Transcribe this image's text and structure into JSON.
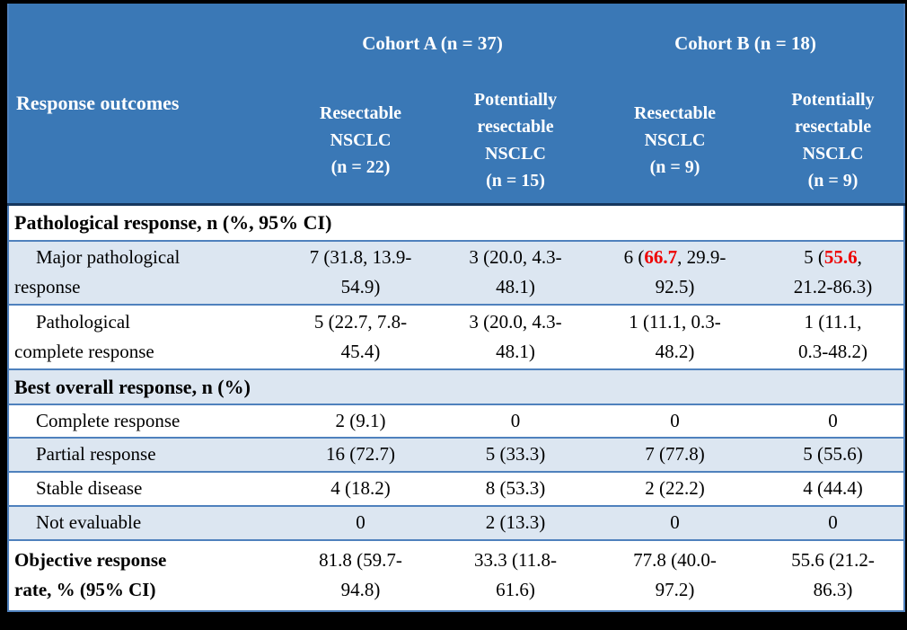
{
  "colors": {
    "frame": "#000000",
    "header_bg": "#3a78b6",
    "header_text": "#ffffff",
    "header_divider": "#16375e",
    "row_border": "#4f81bd",
    "band_bg": "#dce6f1",
    "body_text": "#000000",
    "highlight_red": "#ee0000"
  },
  "header": {
    "row_label": "Response outcomes",
    "groups": [
      {
        "label": "Cohort A (n = 37)"
      },
      {
        "label": "Cohort B (n = 18)"
      }
    ],
    "columns": [
      "Resectable\nNSCLC\n(n = 22)",
      "Potentially\nresectable\nNSCLC\n(n = 15)",
      "Resectable\nNSCLC\n(n = 9)",
      "Potentially\nresectable\nNSCLC\n(n = 9)"
    ]
  },
  "rows": [
    {
      "type": "section",
      "label": "Pathological response, n (%, 95% CI)"
    },
    {
      "type": "data",
      "label": "Major pathological\nresponse",
      "cells": [
        [
          {
            "t": "7 (31.8, 13.9-\n54.9)"
          }
        ],
        [
          {
            "t": "3 (20.0, 4.3-\n48.1)"
          }
        ],
        [
          {
            "t": "6 ("
          },
          {
            "t": "66.7",
            "highlight": true
          },
          {
            "t": ", 29.9-\n92.5)"
          }
        ],
        [
          {
            "t": "5 ("
          },
          {
            "t": "55.6",
            "highlight": true
          },
          {
            "t": ",\n21.2-86.3)"
          }
        ]
      ]
    },
    {
      "type": "data",
      "label": "Pathological\ncomplete response",
      "cells": [
        [
          {
            "t": "5 (22.7, 7.8-\n45.4)"
          }
        ],
        [
          {
            "t": "3 (20.0, 4.3-\n48.1)"
          }
        ],
        [
          {
            "t": "1 (11.1, 0.3-\n48.2)"
          }
        ],
        [
          {
            "t": "1 (11.1,\n0.3-48.2)"
          }
        ]
      ]
    },
    {
      "type": "section",
      "label": "Best overall response, n (%)"
    },
    {
      "type": "data",
      "label": "Complete response",
      "cells": [
        [
          {
            "t": "2 (9.1)"
          }
        ],
        [
          {
            "t": "0"
          }
        ],
        [
          {
            "t": "0"
          }
        ],
        [
          {
            "t": "0"
          }
        ]
      ]
    },
    {
      "type": "data",
      "label": "Partial response",
      "cells": [
        [
          {
            "t": "16 (72.7)"
          }
        ],
        [
          {
            "t": "5 (33.3)"
          }
        ],
        [
          {
            "t": "7 (77.8)"
          }
        ],
        [
          {
            "t": "5 (55.6)"
          }
        ]
      ]
    },
    {
      "type": "data",
      "label": "Stable disease",
      "cells": [
        [
          {
            "t": "4 (18.2)"
          }
        ],
        [
          {
            "t": "8 (53.3)"
          }
        ],
        [
          {
            "t": "2 (22.2)"
          }
        ],
        [
          {
            "t": "4 (44.4)"
          }
        ]
      ]
    },
    {
      "type": "data",
      "label": "Not evaluable",
      "cells": [
        [
          {
            "t": "0"
          }
        ],
        [
          {
            "t": "2 (13.3)"
          }
        ],
        [
          {
            "t": "0"
          }
        ],
        [
          {
            "t": "0"
          }
        ]
      ]
    },
    {
      "type": "data",
      "label": "Objective response\nrate, % (95% CI)",
      "cells": [
        [
          {
            "t": "81.8 (59.7-\n94.8)"
          }
        ],
        [
          {
            "t": "33.3 (11.8-\n61.6)"
          }
        ],
        [
          {
            "t": "77.8 (40.0-\n97.2)"
          }
        ],
        [
          {
            "t": "55.6 (21.2-\n86.3)"
          }
        ]
      ]
    }
  ]
}
